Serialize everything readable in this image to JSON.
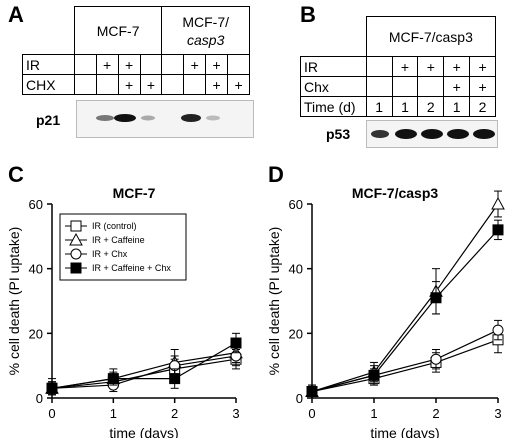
{
  "panelA": {
    "letter": "A",
    "group1": "MCF-7",
    "group2_line1": "MCF-7/",
    "group2_line2": "casp3",
    "row_ir": "IR",
    "row_chx": "CHX",
    "ir_marks": [
      "",
      "+",
      "+",
      "",
      "",
      "+",
      "+",
      ""
    ],
    "chx_marks": [
      "",
      "",
      "+",
      "+",
      "",
      "",
      "+",
      "+"
    ],
    "blot_label": "p21"
  },
  "panelB": {
    "letter": "B",
    "header": "MCF-7/casp3",
    "row_ir": "IR",
    "row_chx": "Chx",
    "row_time": "Time (d)",
    "ir_marks": [
      "",
      "+",
      "+",
      "+",
      "+"
    ],
    "chx_marks": [
      "",
      "",
      "",
      "+",
      "+"
    ],
    "time_vals": [
      "1",
      "1",
      "2",
      "1",
      "2"
    ],
    "blot_label": "p53"
  },
  "chart_data": [
    {
      "panel": "C",
      "type": "line",
      "title": "MCF-7",
      "xlabel": "time (days)",
      "ylabel": "% cell death (PI uptake)",
      "xlim": [
        0,
        3
      ],
      "ylim": [
        0,
        60
      ],
      "xticks": [
        0,
        1,
        2,
        3
      ],
      "yticks": [
        0,
        20,
        40,
        60
      ],
      "legend_position": "top-left",
      "series": [
        {
          "name": "IR (control)",
          "marker": "open-square",
          "x": [
            0,
            1,
            2,
            3
          ],
          "y": [
            3,
            5,
            9,
            12
          ],
          "err": [
            2,
            2,
            3,
            3
          ]
        },
        {
          "name": "IR + Caffeine",
          "marker": "open-triangle",
          "x": [
            0,
            1,
            2,
            3
          ],
          "y": [
            3,
            6,
            11,
            14
          ],
          "err": [
            3,
            3,
            4,
            3
          ]
        },
        {
          "name": "IR + Chx",
          "marker": "open-circle",
          "x": [
            0,
            1,
            2,
            3
          ],
          "y": [
            3,
            4,
            10,
            13
          ],
          "err": [
            2,
            2,
            3,
            3
          ]
        },
        {
          "name": "IR + Caffeine + Chx",
          "marker": "filled-square",
          "x": [
            0,
            1,
            2,
            3
          ],
          "y": [
            3,
            6,
            6,
            17
          ],
          "err": [
            2,
            2,
            3,
            3
          ]
        }
      ]
    },
    {
      "panel": "D",
      "type": "line",
      "title": "MCF-7/casp3",
      "xlabel": "time (days)",
      "ylabel": "% cell death (PI uptake)",
      "xlim": [
        0,
        3
      ],
      "ylim": [
        0,
        60
      ],
      "xticks": [
        0,
        1,
        2,
        3
      ],
      "yticks": [
        0,
        20,
        40,
        60
      ],
      "series": [
        {
          "name": "IR (control)",
          "marker": "open-square",
          "x": [
            0,
            1,
            2,
            3
          ],
          "y": [
            2,
            6,
            11,
            18
          ],
          "err": [
            2,
            2,
            3,
            4
          ]
        },
        {
          "name": "IR + Caffeine",
          "marker": "open-triangle",
          "x": [
            0,
            1,
            2,
            3
          ],
          "y": [
            2,
            8,
            33,
            60
          ],
          "err": [
            2,
            3,
            7,
            4
          ]
        },
        {
          "name": "IR + Chx",
          "marker": "open-circle",
          "x": [
            0,
            1,
            2,
            3
          ],
          "y": [
            2,
            7,
            12,
            21
          ],
          "err": [
            2,
            2,
            3,
            3
          ]
        },
        {
          "name": "IR + Caffeine + Chx",
          "marker": "filled-square",
          "x": [
            0,
            1,
            2,
            3
          ],
          "y": [
            2,
            7,
            31,
            52
          ],
          "err": [
            2,
            3,
            5,
            3
          ]
        }
      ]
    }
  ]
}
